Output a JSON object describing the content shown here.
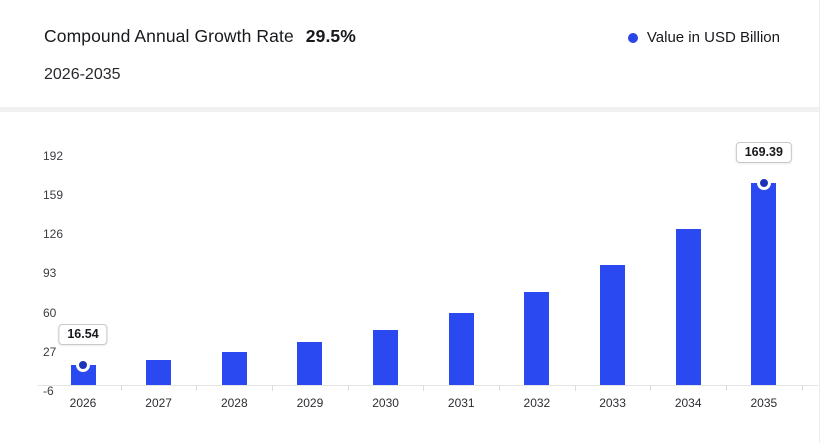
{
  "header": {
    "title": "Compound Annual Growth Rate",
    "cagr": "29.5%",
    "subtitle": "2026-2035"
  },
  "legend": {
    "label": "Value in USD Billion",
    "dot_color": "#2b45e6"
  },
  "chart_data": {
    "type": "bar",
    "title": "Compound Annual Growth Rate 29.5%",
    "range": "2026-2035",
    "categories": [
      "2026",
      "2027",
      "2028",
      "2029",
      "2030",
      "2031",
      "2032",
      "2033",
      "2034",
      "2035"
    ],
    "series": [
      {
        "name": "Value in USD Billion",
        "values": [
          16.54,
          21.42,
          27.74,
          35.92,
          46.51,
          60.23,
          78.0,
          101.0,
          130.8,
          169.39
        ]
      }
    ],
    "y_ticks": [
      192,
      159,
      126,
      93,
      60,
      27,
      -6
    ],
    "ylim": [
      -6,
      214
    ],
    "grid": false,
    "legend_position": "top-right",
    "bar_color": "#2b49f0",
    "marker_color": "#1e34b8",
    "annotations": [
      {
        "category": "2026",
        "label": "16.54",
        "marker": true
      },
      {
        "category": "2035",
        "label": "169.39",
        "marker": true
      }
    ]
  }
}
